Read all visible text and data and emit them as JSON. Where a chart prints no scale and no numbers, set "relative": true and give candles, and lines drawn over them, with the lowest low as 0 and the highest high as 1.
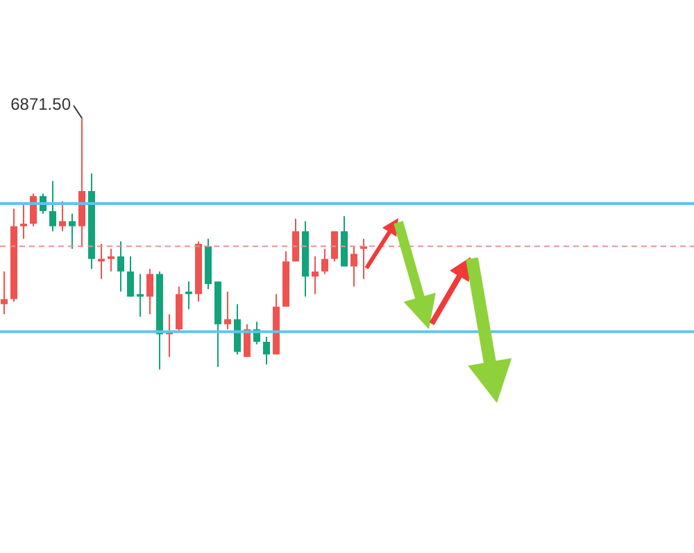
{
  "chart_data": {
    "type": "candlestick",
    "relative": true,
    "categories": [
      null,
      null,
      null,
      null,
      null,
      null,
      null,
      null,
      null,
      null,
      null,
      null,
      null,
      null,
      null,
      null,
      null,
      null,
      null,
      null,
      null,
      null,
      null,
      null,
      null,
      null,
      null,
      null,
      null,
      null,
      null,
      null,
      null,
      null,
      null,
      null,
      null,
      null
    ],
    "ohlc": [
      [
        0.26,
        0.39,
        0.22,
        0.28
      ],
      [
        0.28,
        0.64,
        0.27,
        0.57
      ],
      [
        0.57,
        0.66,
        0.52,
        0.58
      ],
      [
        0.58,
        0.7,
        0.57,
        0.69
      ],
      [
        0.69,
        0.7,
        0.62,
        0.63
      ],
      [
        0.63,
        0.75,
        0.55,
        0.57
      ],
      [
        0.57,
        0.67,
        0.55,
        0.59
      ],
      [
        0.59,
        0.62,
        0.48,
        0.57
      ],
      [
        0.57,
        1,
        0.49,
        0.71
      ],
      [
        0.71,
        0.78,
        0.4,
        0.44
      ],
      [
        0.43,
        0.5,
        0.36,
        0.44
      ],
      [
        0.44,
        0.48,
        0.39,
        0.45
      ],
      [
        0.45,
        0.51,
        0.31,
        0.39
      ],
      [
        0.39,
        0.45,
        0.29,
        0.29
      ],
      [
        0.3,
        0.38,
        0.21,
        0.29
      ],
      [
        0.29,
        0.4,
        0.22,
        0.38
      ],
      [
        0.38,
        0.39,
        0,
        0.14
      ],
      [
        0.14,
        0.22,
        0.05,
        0.15
      ],
      [
        0.16,
        0.33,
        0.15,
        0.3
      ],
      [
        0.31,
        0.35,
        0.24,
        0.3
      ],
      [
        0.3,
        0.51,
        0.27,
        0.5
      ],
      [
        0.49,
        0.52,
        0.32,
        0.34
      ],
      [
        0.35,
        0.35,
        0.01,
        0.18
      ],
      [
        0.18,
        0.31,
        0.16,
        0.2
      ],
      [
        0.2,
        0.26,
        0.06,
        0.07
      ],
      [
        0.05,
        0.18,
        0.05,
        0.16
      ],
      [
        0.16,
        0.19,
        0.1,
        0.11
      ],
      [
        0.11,
        0.13,
        0.02,
        0.06
      ],
      [
        0.06,
        0.3,
        0.06,
        0.25
      ],
      [
        0.25,
        0.47,
        0.25,
        0.43
      ],
      [
        0.43,
        0.6,
        0.43,
        0.55
      ],
      [
        0.55,
        0.59,
        0.29,
        0.37
      ],
      [
        0.37,
        0.45,
        0.3,
        0.39
      ],
      [
        0.39,
        0.48,
        0.38,
        0.44
      ],
      [
        0.44,
        0.55,
        0.43,
        0.55
      ],
      [
        0.55,
        0.61,
        0.41,
        0.41
      ],
      [
        0.41,
        0.49,
        0.33,
        0.46
      ],
      [
        0.48,
        0.52,
        0.36,
        0.49
      ]
    ],
    "colors": [
      "#ef5350",
      "#ef5350",
      "#ef5350",
      "#ef5350",
      "#12a37a",
      "#12a37a",
      "#ef5350",
      "#12a37a",
      "#ef5350",
      "#12a37a",
      "#ef5350",
      "#ef5350",
      "#12a37a",
      "#12a37a",
      "#12a37a",
      "#ef5350",
      "#12a37a",
      "#ef5350",
      "#ef5350",
      "#12a37a",
      "#ef5350",
      "#12a37a",
      "#12a37a",
      "#ef5350",
      "#12a37a",
      "#ef5350",
      "#12a37a",
      "#12a37a",
      "#ef5350",
      "#ef5350",
      "#ef5350",
      "#12a37a",
      "#ef5350",
      "#ef5350",
      "#ef5350",
      "#12a37a",
      "#ef5350",
      "#ef5350"
    ],
    "ref_lines": [
      {
        "axis": "y",
        "value": 0.66,
        "color": "#5ec4ef"
      },
      {
        "axis": "y",
        "value": 0.15,
        "color": "#5ec4ef"
      },
      {
        "axis": "y",
        "value": 0.49,
        "color": "#e89090",
        "line_style": "dashed"
      }
    ],
    "annotations": [
      "6871.50"
    ]
  }
}
